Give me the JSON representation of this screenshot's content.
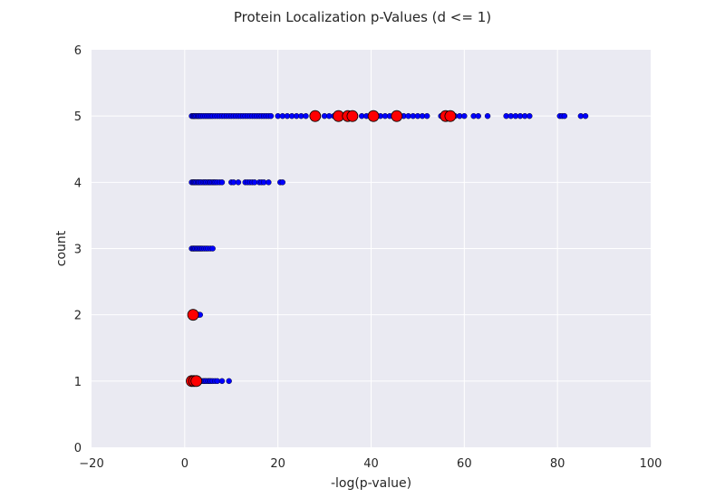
{
  "chart_data": {
    "type": "scatter",
    "title": "Protein Localization p-Values (d <= 1)",
    "xlabel": "-log(p-value)",
    "ylabel": "count",
    "xlim": [
      -20,
      100
    ],
    "ylim": [
      0,
      6
    ],
    "xticks": [
      "−20",
      "0",
      "20",
      "40",
      "60",
      "80",
      "100"
    ],
    "yticks": [
      "0",
      "1",
      "2",
      "3",
      "4",
      "5",
      "6"
    ],
    "grid": true,
    "colors": {
      "background": "#eaeaf2",
      "grid": "#ffffff",
      "blue": "#0000ff",
      "red": "#ff0000"
    },
    "series": [
      {
        "color": "#0000ff",
        "x": [
          1.5,
          1.8,
          2.0,
          2.2,
          2.5,
          2.8,
          3.0,
          3.3,
          3.6,
          4.0,
          4.4,
          4.8,
          5.2,
          5.6,
          6.0,
          6.5,
          7.0,
          7.5,
          8.0,
          8.5,
          9.0,
          9.5,
          10.0,
          10.5,
          11.0,
          11.5,
          12.0,
          12.5,
          13.0,
          13.5,
          14.0,
          14.5,
          15.0,
          15.5,
          16.0,
          16.5,
          17.0,
          17.5,
          18.0,
          18.5,
          20.0,
          21.0,
          22.0,
          23.0,
          24.0,
          25.0,
          26.0,
          28.0,
          30.0,
          31.0,
          32.0,
          34.0,
          35.0,
          36.0,
          38.0,
          39.0,
          40.0,
          41.0,
          42.0,
          43.0,
          44.0,
          45.0,
          47.0,
          48.0,
          49.0,
          50.0,
          51.0,
          52.0,
          55.0,
          56.0,
          57.0,
          58.0,
          59.0,
          60.0,
          62.0,
          63.0,
          65.0,
          69.0,
          70.0,
          71.0,
          72.0,
          73.0,
          74.0,
          80.5,
          81.0,
          81.5,
          85.0,
          86.0,
          1.5,
          1.8,
          2.0,
          2.2,
          2.5,
          2.8,
          3.0,
          3.3,
          3.6,
          4.0,
          4.3,
          4.6,
          5.0,
          5.3,
          5.6,
          6.0,
          6.3,
          6.6,
          7.0,
          7.5,
          8.0,
          10.0,
          10.5,
          11.5,
          13.0,
          13.5,
          14.0,
          14.5,
          15.0,
          16.0,
          16.5,
          17.0,
          18.0,
          20.5,
          21.0,
          1.5,
          1.8,
          2.0,
          2.3,
          2.6,
          2.9,
          3.2,
          3.5,
          3.8,
          4.2,
          4.6,
          5.0,
          5.5,
          6.0,
          1.8,
          2.2,
          2.6,
          3.0,
          3.3,
          1.5,
          1.8,
          2.0,
          2.3,
          2.6,
          3.0,
          3.3,
          3.6,
          4.0,
          4.3,
          4.6,
          5.0,
          5.3,
          5.6,
          6.0,
          6.5,
          7.0,
          8.0,
          9.5
        ],
        "y": [
          5,
          5,
          5,
          5,
          5,
          5,
          5,
          5,
          5,
          5,
          5,
          5,
          5,
          5,
          5,
          5,
          5,
          5,
          5,
          5,
          5,
          5,
          5,
          5,
          5,
          5,
          5,
          5,
          5,
          5,
          5,
          5,
          5,
          5,
          5,
          5,
          5,
          5,
          5,
          5,
          5,
          5,
          5,
          5,
          5,
          5,
          5,
          5,
          5,
          5,
          5,
          5,
          5,
          5,
          5,
          5,
          5,
          5,
          5,
          5,
          5,
          5,
          5,
          5,
          5,
          5,
          5,
          5,
          5,
          5,
          5,
          5,
          5,
          5,
          5,
          5,
          5,
          5,
          5,
          5,
          5,
          5,
          5,
          5,
          5,
          5,
          5,
          5,
          4,
          4,
          4,
          4,
          4,
          4,
          4,
          4,
          4,
          4,
          4,
          4,
          4,
          4,
          4,
          4,
          4,
          4,
          4,
          4,
          4,
          4,
          4,
          4,
          4,
          4,
          4,
          4,
          4,
          4,
          4,
          4,
          4,
          4,
          4,
          3,
          3,
          3,
          3,
          3,
          3,
          3,
          3,
          3,
          3,
          3,
          3,
          3,
          3,
          2,
          2,
          2,
          2,
          2,
          1,
          1,
          1,
          1,
          1,
          1,
          1,
          1,
          1,
          1,
          1,
          1,
          1,
          1,
          1,
          1,
          1,
          1,
          1
        ]
      },
      {
        "color": "#ff0000",
        "x": [
          28.0,
          33.0,
          35.0,
          36.0,
          40.5,
          45.5,
          56.0,
          57.0,
          1.8,
          1.5,
          2.0,
          2.5
        ],
        "y": [
          5,
          5,
          5,
          5,
          5,
          5,
          5,
          5,
          2,
          1,
          1,
          1
        ]
      }
    ]
  }
}
